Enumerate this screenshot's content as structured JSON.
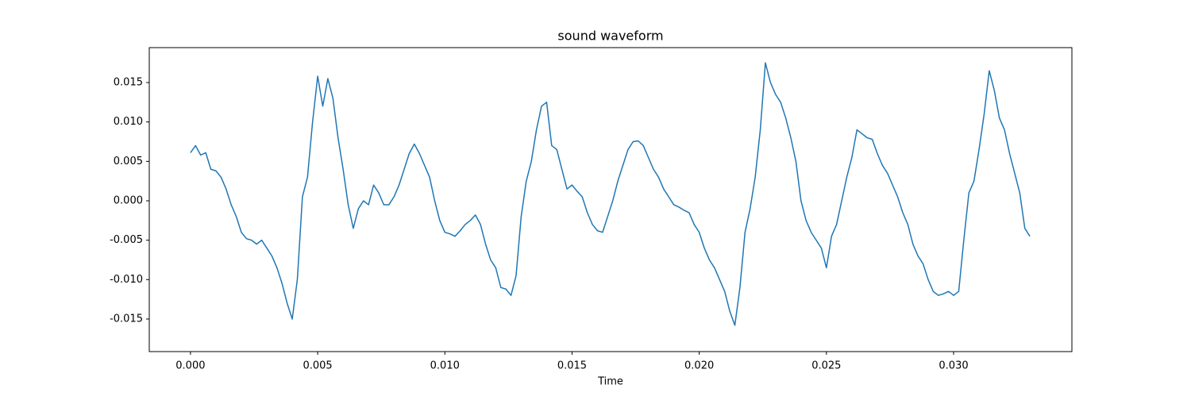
{
  "chart_data": {
    "type": "line",
    "title": "sound waveform",
    "x_label": "Time",
    "color": "#1f77b4",
    "x": [
      0.0,
      0.0002,
      0.0004,
      0.0006,
      0.0008,
      0.001,
      0.0012,
      0.0014,
      0.0016,
      0.0018,
      0.002,
      0.0022,
      0.0024,
      0.0026,
      0.0028,
      0.003,
      0.0032,
      0.0034,
      0.0036,
      0.0038,
      0.004,
      0.0042,
      0.0044,
      0.0046,
      0.0048,
      0.005,
      0.0052,
      0.0054,
      0.0056,
      0.0058,
      0.006,
      0.0062,
      0.0064,
      0.0066,
      0.0068,
      0.007,
      0.0072,
      0.0074,
      0.0076,
      0.0078,
      0.008,
      0.0082,
      0.0084,
      0.0086,
      0.0088,
      0.009,
      0.0092,
      0.0094,
      0.0096,
      0.0098,
      0.01,
      0.0102,
      0.0104,
      0.0106,
      0.0108,
      0.011,
      0.0112,
      0.0114,
      0.0116,
      0.0118,
      0.012,
      0.0122,
      0.0124,
      0.0126,
      0.0128,
      0.013,
      0.0132,
      0.0134,
      0.0136,
      0.0138,
      0.014,
      0.0142,
      0.0144,
      0.0146,
      0.0148,
      0.015,
      0.0152,
      0.0154,
      0.0156,
      0.0158,
      0.016,
      0.0162,
      0.0164,
      0.0166,
      0.0168,
      0.017,
      0.0172,
      0.0174,
      0.0176,
      0.0178,
      0.018,
      0.0182,
      0.0184,
      0.0186,
      0.0188,
      0.019,
      0.0192,
      0.0194,
      0.0196,
      0.0198,
      0.02,
      0.0202,
      0.0204,
      0.0206,
      0.0208,
      0.021,
      0.0212,
      0.0214,
      0.0216,
      0.0218,
      0.022,
      0.0222,
      0.0224,
      0.0226,
      0.0228,
      0.023,
      0.0232,
      0.0234,
      0.0236,
      0.0238,
      0.024,
      0.0242,
      0.0244,
      0.0246,
      0.0248,
      0.025,
      0.0252,
      0.0254,
      0.0256,
      0.0258,
      0.026,
      0.0262,
      0.0264,
      0.0266,
      0.0268,
      0.027,
      0.0272,
      0.0274,
      0.0276,
      0.0278,
      0.028,
      0.0282,
      0.0284,
      0.0286,
      0.0288,
      0.029,
      0.0292,
      0.0294,
      0.0296,
      0.0298,
      0.03,
      0.0302,
      0.0304,
      0.0306,
      0.0308,
      0.031,
      0.0312,
      0.0314,
      0.0316,
      0.0318,
      0.032,
      0.0322,
      0.0324,
      0.0326,
      0.0328,
      0.033
    ],
    "values": [
      0.0061,
      0.007,
      0.0058,
      0.0061,
      0.004,
      0.0038,
      0.003,
      0.0015,
      -0.0005,
      -0.002,
      -0.004,
      -0.0048,
      -0.005,
      -0.0055,
      -0.005,
      -0.006,
      -0.007,
      -0.0085,
      -0.0105,
      -0.013,
      -0.015,
      -0.01,
      0.0005,
      0.003,
      0.01,
      0.0158,
      0.012,
      0.0155,
      0.013,
      0.008,
      0.004,
      -0.0005,
      -0.0035,
      -0.001,
      0.0,
      -0.0005,
      0.002,
      0.001,
      -0.0005,
      -0.0005,
      0.0005,
      0.002,
      0.004,
      0.006,
      0.0072,
      0.006,
      0.0045,
      0.003,
      0.0,
      -0.0025,
      -0.004,
      -0.0042,
      -0.0045,
      -0.0038,
      -0.003,
      -0.0025,
      -0.0018,
      -0.003,
      -0.0055,
      -0.0075,
      -0.0085,
      -0.011,
      -0.0112,
      -0.012,
      -0.0095,
      -0.002,
      0.0025,
      0.005,
      0.009,
      0.012,
      0.0125,
      0.007,
      0.0065,
      0.004,
      0.0015,
      0.002,
      0.0012,
      0.0005,
      -0.0015,
      -0.003,
      -0.0038,
      -0.004,
      -0.002,
      0.0,
      0.0025,
      0.0045,
      0.0065,
      0.0075,
      0.0076,
      0.007,
      0.0055,
      0.004,
      0.003,
      0.0015,
      0.0005,
      -0.0005,
      -0.0008,
      -0.0012,
      -0.0015,
      -0.003,
      -0.004,
      -0.006,
      -0.0075,
      -0.0085,
      -0.01,
      -0.0115,
      -0.014,
      -0.0158,
      -0.011,
      -0.004,
      -0.001,
      0.003,
      0.009,
      0.0175,
      0.015,
      0.0135,
      0.0125,
      0.0105,
      0.008,
      0.005,
      0.0,
      -0.0025,
      -0.004,
      -0.005,
      -0.006,
      -0.0085,
      -0.0045,
      -0.003,
      0.0,
      0.003,
      0.0055,
      0.009,
      0.0085,
      0.008,
      0.0078,
      0.006,
      0.0045,
      0.0035,
      0.002,
      0.0005,
      -0.0015,
      -0.003,
      -0.0055,
      -0.007,
      -0.008,
      -0.01,
      -0.0115,
      -0.012,
      -0.0118,
      -0.0115,
      -0.012,
      -0.0115,
      -0.005,
      0.001,
      0.0025,
      0.0065,
      0.011,
      0.0165,
      0.014,
      0.0105,
      0.009,
      0.006,
      0.0035,
      0.001,
      -0.0035,
      -0.0045
    ],
    "xlim": [
      -0.00162,
      0.03465
    ],
    "ylim": [
      -0.01913,
      0.01943
    ],
    "xticks": [
      {
        "value": 0,
        "label": "0.000"
      },
      0.005,
      {
        "value": 0.01,
        "label": "0.010"
      },
      0.015,
      {
        "value": 0.02,
        "label": "0.020"
      },
      0.025,
      {
        "value": 0.03,
        "label": "0.030"
      }
    ],
    "yticks": [
      -0.015,
      {
        "value": -0.01,
        "label": "-0.010"
      },
      -0.005,
      {
        "value": 0,
        "label": "0.000"
      },
      0.005,
      {
        "value": 0.01,
        "label": "0.010"
      },
      0.015
    ]
  }
}
